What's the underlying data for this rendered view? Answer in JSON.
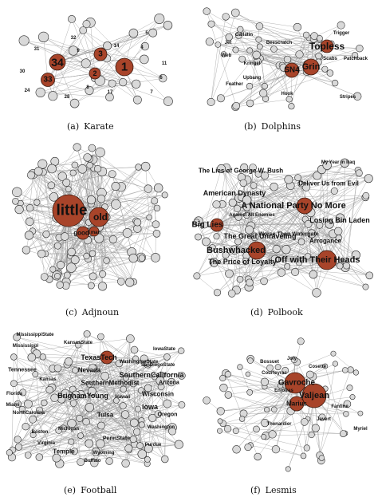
{
  "colors": {
    "edge": "#9a9a9a",
    "node_fill": "#d9d9d9",
    "node_stroke": "#2b2b2b",
    "hub_fill": "#a8442a",
    "hub_stroke": "#3a1a10",
    "label": "#111111"
  },
  "panels": [
    {
      "key": "karate",
      "letter": "(a)",
      "caption": "Karate",
      "hubs": [
        "34",
        "33",
        "1",
        "3",
        "2"
      ],
      "labels": [
        "32",
        "14",
        "9",
        "4",
        "8",
        "31",
        "24",
        "28",
        "30",
        "6",
        "7",
        "11",
        "5",
        "17"
      ]
    },
    {
      "key": "dolphins",
      "letter": "(b)",
      "caption": "Dolphins",
      "hubs": [
        "Grin",
        "SN4",
        "Topless"
      ],
      "labels": [
        "Scabs",
        "Patchback",
        "Kringel",
        "Upbang",
        "Feather",
        "Web",
        "Jet",
        "Gallatin",
        "Beescratch",
        "Trigger",
        "Stripes",
        "Hook"
      ]
    },
    {
      "key": "adjnoun",
      "letter": "(c)",
      "caption": "Adjnoun",
      "hubs": [
        "little",
        "old",
        "good",
        "man"
      ],
      "labels": []
    },
    {
      "key": "polbook",
      "letter": "(d)",
      "caption": "Polbook",
      "hubs": [
        "A National Party No More",
        "Bushwhacked",
        "Off with Their Heads",
        "Big Lies"
      ],
      "labels": [
        "The Lies of George W. Bush",
        "Deliver Us from Evil",
        "American Dynasty",
        "Losing Bin Laden",
        "Worse Than Watergate",
        "The Great Unraveling",
        "Arrogance",
        "The Price of Loyalty",
        "Against All Enemies",
        "My Year in Iraq"
      ]
    },
    {
      "key": "football",
      "letter": "(e)",
      "caption": "Football",
      "hubs": [
        "TexasTech"
      ],
      "labels": [
        "Nevada",
        "SouthernCalifornia",
        "BrighamYoung",
        "SouthernMethodist",
        "Tulsa",
        "Iowa",
        "Wisconsin",
        "Arizona",
        "Oregon",
        "Washington",
        "Tennessee",
        "Florida",
        "Kansas",
        "KansasState",
        "Mississippi",
        "MississippiState",
        "WashingtonState",
        "SanDiegoState",
        "IowaState",
        "Temple",
        "Purdue",
        "PennState",
        "Michigan",
        "Boston",
        "Virginia",
        "Buffalo",
        "Wyoming",
        "NorthCarolina",
        "Miami",
        "Hawaii"
      ]
    },
    {
      "key": "lesmis",
      "letter": "(f)",
      "caption": "Lesmis",
      "hubs": [
        "Valjean",
        "Gavroche",
        "Marius"
      ],
      "labels": [
        "Enjolras",
        "Thenardier",
        "Javert",
        "Fantine",
        "Cosette",
        "Courfeyrac",
        "Bossuet",
        "Joly",
        "Myriel"
      ]
    }
  ]
}
